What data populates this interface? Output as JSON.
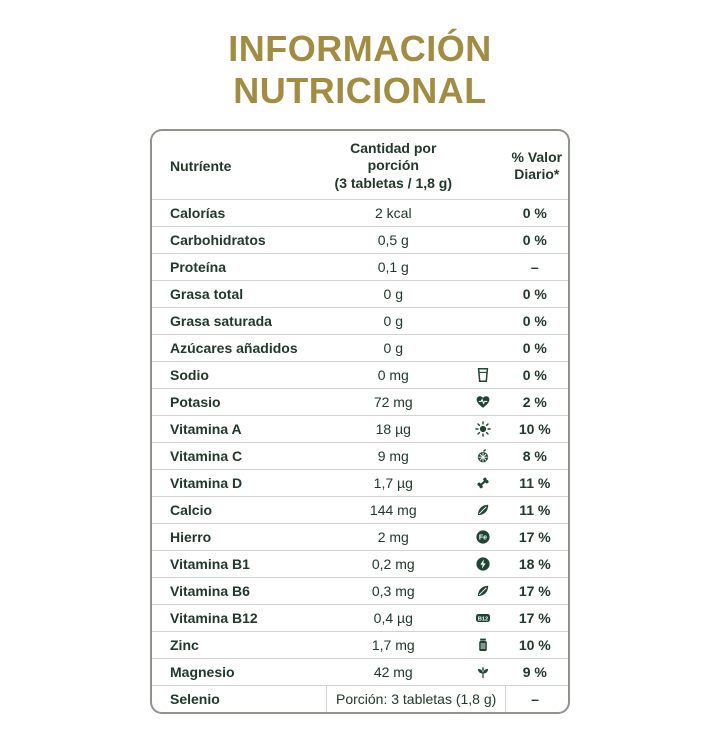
{
  "title": {
    "line1": "INFORMACIÓN",
    "line2": "NUTRICIONAL"
  },
  "colors": {
    "accent": "#a28c41",
    "text": "#20392b",
    "icon": "#1e4733",
    "border": "#8e948c",
    "divider": "#d2d2d2"
  },
  "table": {
    "header": {
      "nutrient": "Nutríente",
      "amount_line1": "Cantidad por porción",
      "amount_line2": "(3 tabletas / 1,8 g)",
      "dv_line1": "% Valor",
      "dv_line2": "Diario*"
    },
    "rows": [
      {
        "nutrient": "Calorías",
        "amount": "2 kcal",
        "icon": "",
        "dv": "0 %"
      },
      {
        "nutrient": "Carbohidratos",
        "amount": "0,5 g",
        "icon": "",
        "dv": "0 %"
      },
      {
        "nutrient": "Proteína",
        "amount": "0,1 g",
        "icon": "",
        "dv": "–"
      },
      {
        "nutrient": "Grasa total",
        "amount": "0 g",
        "icon": "",
        "dv": "0 %"
      },
      {
        "nutrient": "Grasa saturada",
        "amount": "0 g",
        "icon": "",
        "dv": "0 %"
      },
      {
        "nutrient": "Azúcares añadidos",
        "amount": "0 g",
        "icon": "",
        "dv": "0 %"
      },
      {
        "nutrient": "Sodio",
        "amount": "0 mg",
        "icon": "glass",
        "dv": "0 %"
      },
      {
        "nutrient": "Potasio",
        "amount": "72 mg",
        "icon": "heart-pulse",
        "dv": "2 %"
      },
      {
        "nutrient": "Vitamina A",
        "amount": "18 µg",
        "icon": "sun",
        "dv": "10 %"
      },
      {
        "nutrient": "Vitamina C",
        "amount": "9 mg",
        "icon": "citrus",
        "dv": "8 %"
      },
      {
        "nutrient": "Vitamina D",
        "amount": "1,7 µg",
        "icon": "bone",
        "dv": "11 %"
      },
      {
        "nutrient": "Calcio",
        "amount": "144 mg",
        "icon": "leaf",
        "dv": "11 %"
      },
      {
        "nutrient": "Hierro",
        "amount": "2 mg",
        "icon": "fe-badge",
        "dv": "17 %"
      },
      {
        "nutrient": "Vitamina B1",
        "amount": "0,2 mg",
        "icon": "bolt",
        "dv": "18 %"
      },
      {
        "nutrient": "Vitamina B6",
        "amount": "0,3 mg",
        "icon": "leaf",
        "dv": "17 %"
      },
      {
        "nutrient": "Vitamina B12",
        "amount": "0,4 µg",
        "icon": "b12-badge",
        "dv": "17 %"
      },
      {
        "nutrient": "Zinc",
        "amount": "1,7 mg",
        "icon": "jar",
        "dv": "10 %"
      },
      {
        "nutrient": "Magnesio",
        "amount": "42 mg",
        "icon": "plant",
        "dv": "9 %"
      }
    ],
    "footer": {
      "nutrient": "Selenio",
      "portion": "Porción: 3 tabletas (1,8 g)",
      "dv": "–"
    }
  }
}
